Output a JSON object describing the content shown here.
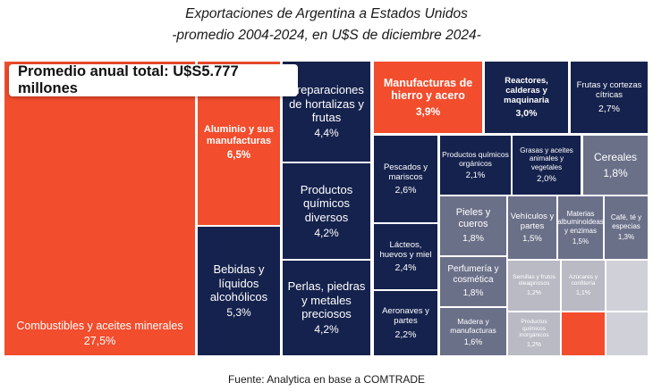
{
  "title": "Exportaciones de Argentina a Estados Unidos",
  "subtitle": "-promedio 2004-2024, en U$S de diciembre 2024-",
  "total_label": "Promedio anual total: U$S5.777 millones",
  "source": "Fuente: Analytica en base a COMTRADE",
  "colors": {
    "orange": "#f24d2d",
    "navy": "#15224d",
    "slate": "#6b7089",
    "light_gray": "#b9bac4",
    "pale_gray": "#d0d1d8"
  },
  "chart_data": {
    "type": "treemap",
    "title": "Exportaciones de Argentina a Estados Unidos",
    "subtitle": "-promedio 2004-2024, en U$S de diciembre 2024-",
    "unit": "% del total",
    "items": [
      {
        "label": "Combustibles y aceites minerales",
        "share": "27,5%",
        "value": 27.5,
        "color": "orange"
      },
      {
        "label": "Aluminio y sus manufacturas",
        "share": "6,5%",
        "value": 6.5,
        "color": "orange"
      },
      {
        "label": "Bebidas y líquidos alcohólicos",
        "share": "5,3%",
        "value": 5.3,
        "color": "navy"
      },
      {
        "label": "Preparaciones de hortalizas y frutas",
        "share": "4,4%",
        "value": 4.4,
        "color": "navy"
      },
      {
        "label": "Productos químicos diversos",
        "share": "4,2%",
        "value": 4.2,
        "color": "navy"
      },
      {
        "label": "Perlas, piedras y metales preciosos",
        "share": "4,2%",
        "value": 4.2,
        "color": "navy"
      },
      {
        "label": "Manufacturas de hierro y acero",
        "share": "3,9%",
        "value": 3.9,
        "color": "orange"
      },
      {
        "label": "Reactores, calderas y maquinaria",
        "share": "3,0%",
        "value": 3.0,
        "color": "navy"
      },
      {
        "label": "Frutas y cortezas cítricas",
        "share": "2,7%",
        "value": 2.7,
        "color": "navy"
      },
      {
        "label": "Pescados y mariscos",
        "share": "2,6%",
        "value": 2.6,
        "color": "navy"
      },
      {
        "label": "Lácteos, huevos y miel",
        "share": "2,4%",
        "value": 2.4,
        "color": "navy"
      },
      {
        "label": "Aeronaves y partes",
        "share": "2,2%",
        "value": 2.2,
        "color": "navy"
      },
      {
        "label": "Productos químicos orgánicos",
        "share": "2,1%",
        "value": 2.1,
        "color": "navy"
      },
      {
        "label": "Grasas y aceites animales y vegetales",
        "share": "2,0%",
        "value": 2.0,
        "color": "navy"
      },
      {
        "label": "Cereales",
        "share": "1,8%",
        "value": 1.8,
        "color": "slate"
      },
      {
        "label": "Pieles y cueros",
        "share": "1,8%",
        "value": 1.8,
        "color": "slate"
      },
      {
        "label": "Perfumería y cosmética",
        "share": "1,8%",
        "value": 1.8,
        "color": "slate"
      },
      {
        "label": "Madera y manufacturas",
        "share": "1,6%",
        "value": 1.6,
        "color": "slate"
      },
      {
        "label": "Vehículos y partes",
        "share": "1,5%",
        "value": 1.5,
        "color": "slate"
      },
      {
        "label": "Materias albuminoideas y enzimas",
        "share": "1,5%",
        "value": 1.5,
        "color": "slate"
      },
      {
        "label": "Café, té y especias",
        "share": "1,3%",
        "value": 1.3,
        "color": "slate"
      },
      {
        "label": "Semillas y frutos oleaginosos",
        "share": "1,2%",
        "value": 1.2,
        "color": "light_gray"
      },
      {
        "label": "Productos químicos inorgánicos",
        "share": "1,2%",
        "value": 1.2,
        "color": "light_gray"
      },
      {
        "label": "Azúcares y confitería",
        "share": "1,1%",
        "value": 1.1,
        "color": "light_gray"
      },
      {
        "label": "",
        "share": "",
        "value": null,
        "color": "orange"
      },
      {
        "label": "",
        "share": "",
        "value": null,
        "color": "pale_gray"
      },
      {
        "label": "",
        "share": "",
        "value": null,
        "color": "pale_gray"
      }
    ]
  }
}
